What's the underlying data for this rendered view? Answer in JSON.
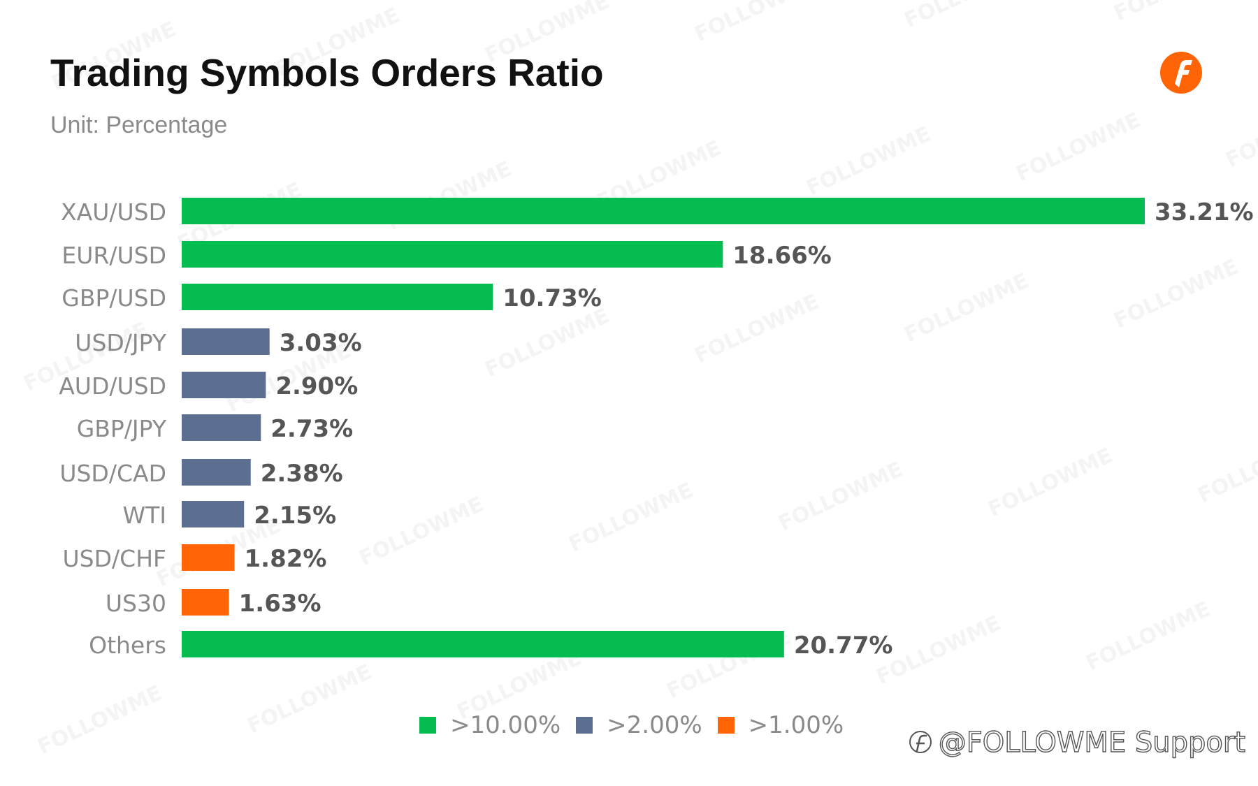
{
  "chart_data": {
    "type": "bar",
    "orientation": "horizontal",
    "title": "Trading Symbols Orders Ratio",
    "subtitle": "Unit: Percentage",
    "categories": [
      "XAU/USD",
      "EUR/USD",
      "GBP/USD",
      "USD/JPY",
      "AUD/USD",
      "GBP/JPY",
      "USD/CAD",
      "WTI",
      "USD/CHF",
      "US30",
      "Others"
    ],
    "values": [
      33.21,
      18.66,
      10.73,
      3.03,
      2.9,
      2.73,
      2.38,
      2.15,
      1.82,
      1.63,
      20.77
    ],
    "value_labels": [
      "33.21%",
      "18.66%",
      "10.73%",
      "3.03%",
      "2.90%",
      "2.73%",
      "2.38%",
      "2.15%",
      "1.82%",
      "1.63%",
      "20.77%"
    ],
    "groups": [
      "high",
      "high",
      "high",
      "mid",
      "mid",
      "mid",
      "mid",
      "mid",
      "low",
      "low",
      "high"
    ],
    "xlim": [
      0,
      33.21
    ],
    "grid": false,
    "legend_position": "bottom-center",
    "legend": [
      {
        "key": "high",
        "label": ">10.00%",
        "color": "#05BC50"
      },
      {
        "key": "mid",
        "label": ">2.00%",
        "color": "#5D6F91"
      },
      {
        "key": "low",
        "label": ">1.00%",
        "color": "#FF6506"
      }
    ]
  },
  "colors": {
    "accent": "#FF6506",
    "title_text": "#111111",
    "muted_text": "#8a8a8a",
    "value_text": "#555555"
  },
  "branding": {
    "logo_icon": "followme-logo-icon",
    "support_icon": "followme-small-icon",
    "support_tag": "@FOLLOWME Support",
    "watermark_text": "FOLLOWME"
  }
}
